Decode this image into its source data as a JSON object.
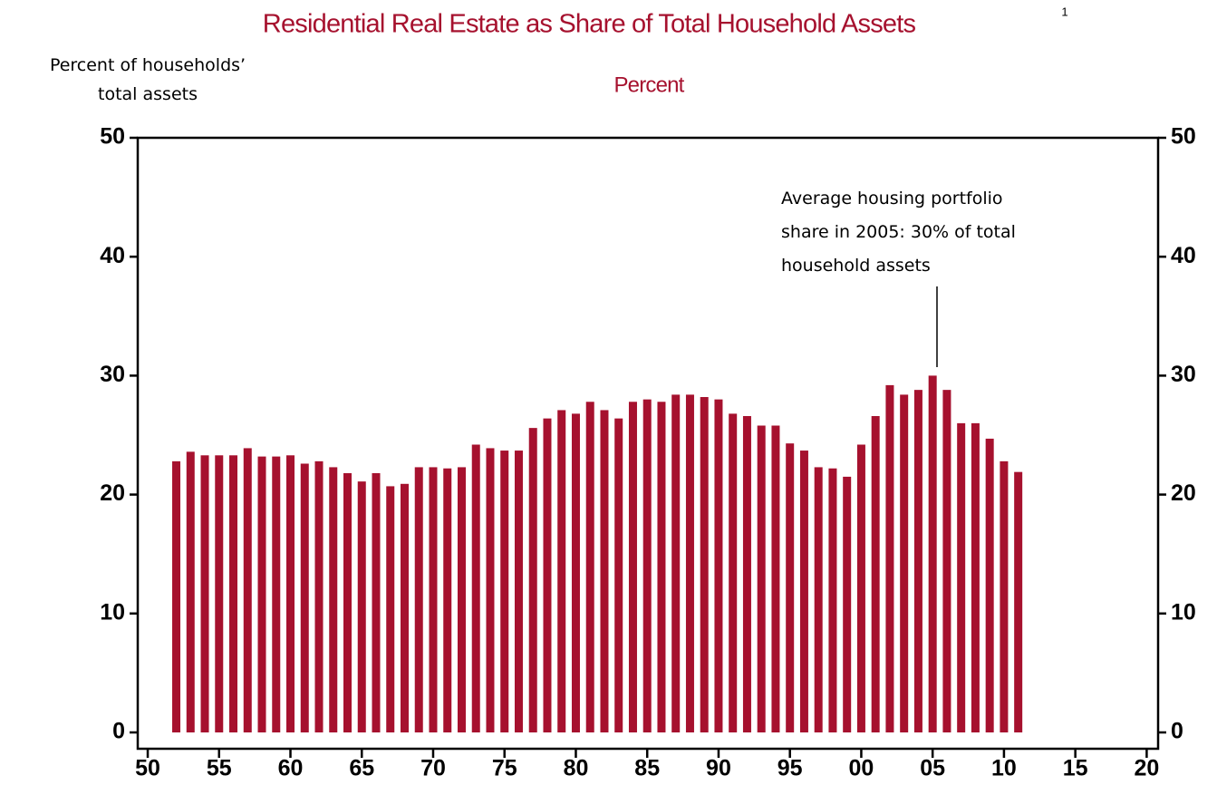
{
  "chart_data": {
    "type": "bar",
    "title": "Residential Real Estate as Share of Total Household Assets",
    "footnote_marker": "1",
    "subtitle": "Percent",
    "y_label_lines": [
      "Percent of households’",
      "total assets"
    ],
    "annotation_lines": [
      "Average housing portfolio",
      "share in 2005: 30% of total",
      "household assets"
    ],
    "color": "#a6112e",
    "x": [
      1952,
      1953,
      1954,
      1955,
      1956,
      1957,
      1958,
      1959,
      1960,
      1961,
      1962,
      1963,
      1964,
      1965,
      1966,
      1967,
      1968,
      1969,
      1970,
      1971,
      1972,
      1973,
      1974,
      1975,
      1976,
      1977,
      1978,
      1979,
      1980,
      1981,
      1982,
      1983,
      1984,
      1985,
      1986,
      1987,
      1988,
      1989,
      1990,
      1991,
      1992,
      1993,
      1994,
      1995,
      1996,
      1997,
      1998,
      1999,
      2000,
      2001,
      2002,
      2003,
      2004,
      2005,
      2006,
      2007,
      2008,
      2009,
      2010,
      2011
    ],
    "values": [
      22.8,
      23.6,
      23.3,
      23.3,
      23.3,
      23.9,
      23.2,
      23.2,
      23.3,
      22.6,
      22.8,
      22.3,
      21.8,
      21.1,
      21.8,
      20.7,
      20.9,
      22.3,
      22.3,
      22.2,
      22.3,
      24.2,
      23.9,
      23.7,
      23.7,
      25.6,
      26.4,
      27.1,
      26.8,
      27.8,
      27.1,
      26.4,
      27.8,
      28.0,
      27.8,
      28.4,
      28.4,
      28.2,
      28.0,
      26.8,
      26.6,
      25.8,
      25.8,
      24.3,
      23.7,
      22.3,
      22.2,
      21.5,
      24.2,
      26.6,
      29.2,
      28.4,
      28.8,
      30.0,
      28.8,
      26.0,
      26.0,
      24.7,
      22.8,
      21.9
    ],
    "xlim": [
      1949.3,
      2020.8
    ],
    "xticks": [
      {
        "value": 1950,
        "label": "50"
      },
      {
        "value": 1955,
        "label": "55"
      },
      {
        "value": 1960,
        "label": "60"
      },
      {
        "value": 1965,
        "label": "65"
      },
      {
        "value": 1970,
        "label": "70"
      },
      {
        "value": 1975,
        "label": "75"
      },
      {
        "value": 1980,
        "label": "80"
      },
      {
        "value": 1985,
        "label": "85"
      },
      {
        "value": 1990,
        "label": "90"
      },
      {
        "value": 1995,
        "label": "95"
      },
      {
        "value": 2000,
        "label": "00"
      },
      {
        "value": 2005,
        "label": "05"
      },
      {
        "value": 2010,
        "label": "10"
      },
      {
        "value": 2015,
        "label": "15"
      },
      {
        "value": 2020,
        "label": "20"
      }
    ],
    "ylim": [
      0,
      50
    ],
    "yticks": [
      0,
      10,
      20,
      30,
      40,
      50
    ],
    "grid": false
  }
}
